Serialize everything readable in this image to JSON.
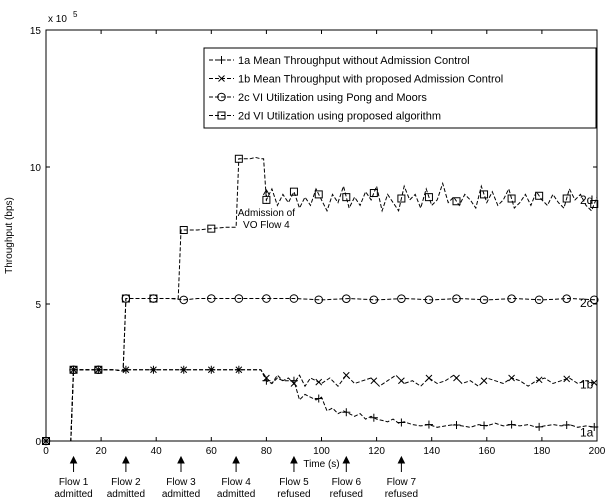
{
  "chart_data": {
    "type": "line",
    "title": "",
    "xlabel": "Time (s)",
    "ylabel": "Throughput (bps)",
    "y_multiplier_label": "x 10",
    "y_multiplier_exp": "5",
    "xlim": [
      0,
      200
    ],
    "ylim": [
      0,
      15
    ],
    "x_ticks": [
      "0",
      "20",
      "40",
      "60",
      "80",
      "100",
      "120",
      "140",
      "160",
      "180",
      "200"
    ],
    "y_ticks": [
      "0",
      "5",
      "10",
      "15"
    ],
    "grid": false,
    "legend_position": "top-right",
    "series": [
      {
        "name": "1a Mean Throughput without Admission Control",
        "tag": "1a",
        "marker": "+",
        "x": [
          0,
          5,
          9,
          10,
          15,
          20,
          25,
          28,
          29,
          35,
          40,
          45,
          50,
          55,
          60,
          65,
          70,
          72,
          75,
          78,
          80,
          82,
          84,
          86,
          88,
          90,
          92,
          94,
          96,
          98,
          100,
          102,
          104,
          106,
          108,
          110,
          112,
          114,
          116,
          118,
          120,
          122,
          124,
          126,
          128,
          130,
          133,
          136,
          139,
          142,
          145,
          148,
          151,
          154,
          157,
          160,
          163,
          166,
          169,
          172,
          175,
          178,
          181,
          184,
          187,
          190,
          193,
          196,
          200
        ],
        "values": [
          0,
          0,
          0,
          2.6,
          2.6,
          2.6,
          2.6,
          2.55,
          2.6,
          2.6,
          2.6,
          2.6,
          2.6,
          2.6,
          2.6,
          2.6,
          2.6,
          2.6,
          2.6,
          2.6,
          2.2,
          2.1,
          2.3,
          2.2,
          2.2,
          2.2,
          1.5,
          1.7,
          1.6,
          1.5,
          1.6,
          1.1,
          1.2,
          1.0,
          1.1,
          1.0,
          0.9,
          1.0,
          0.8,
          0.9,
          0.8,
          0.75,
          0.7,
          0.8,
          0.65,
          0.7,
          0.6,
          0.55,
          0.6,
          0.5,
          0.55,
          0.6,
          0.55,
          0.5,
          0.6,
          0.55,
          0.65,
          0.55,
          0.6,
          0.55,
          0.6,
          0.5,
          0.55,
          0.6,
          0.55,
          0.6,
          0.5,
          0.55,
          0.5
        ],
        "marker_x": [
          0,
          10,
          19,
          29,
          39,
          50,
          60,
          70,
          80,
          90,
          99,
          109,
          119,
          129,
          139,
          149,
          159,
          169,
          179,
          189,
          199
        ]
      },
      {
        "name": "1b Mean Throughput with proposed Admission Control",
        "tag": "1b",
        "marker": "x",
        "x": [
          0,
          5,
          9,
          10,
          15,
          20,
          25,
          28,
          29,
          35,
          40,
          45,
          50,
          55,
          60,
          65,
          70,
          72,
          75,
          78,
          80,
          82,
          84,
          86,
          88,
          90,
          92,
          94,
          96,
          98,
          100,
          103,
          106,
          109,
          112,
          115,
          118,
          121,
          124,
          127,
          130,
          133,
          136,
          139,
          142,
          145,
          148,
          151,
          154,
          157,
          160,
          163,
          166,
          169,
          172,
          175,
          178,
          181,
          184,
          187,
          190,
          193,
          196,
          200
        ],
        "values": [
          0,
          0,
          0,
          2.6,
          2.6,
          2.6,
          2.6,
          2.55,
          2.6,
          2.6,
          2.6,
          2.6,
          2.6,
          2.6,
          2.6,
          2.6,
          2.6,
          2.6,
          2.6,
          2.6,
          2.3,
          2.1,
          2.4,
          2.2,
          2.3,
          2.1,
          2.4,
          2.0,
          2.3,
          2.2,
          2.1,
          2.3,
          2.0,
          2.4,
          2.1,
          2.2,
          2.3,
          2.0,
          2.2,
          2.4,
          2.1,
          2.2,
          2.0,
          2.3,
          2.1,
          2.2,
          2.4,
          2.1,
          2.2,
          2.0,
          2.3,
          2.2,
          2.1,
          2.3,
          2.2,
          2.0,
          2.2,
          2.3,
          2.1,
          2.2,
          2.3,
          2.1,
          2.2,
          2.1
        ],
        "marker_x": [
          0,
          10,
          19,
          29,
          39,
          50,
          60,
          70,
          80,
          90,
          99,
          109,
          119,
          129,
          139,
          149,
          159,
          169,
          179,
          189,
          199
        ]
      },
      {
        "name": "2c VI Utilization using Pong and Moors",
        "tag": "2c",
        "marker": "o",
        "x": [
          0,
          5,
          9,
          10,
          15,
          20,
          25,
          28,
          29,
          35,
          40,
          45,
          50,
          55,
          60,
          70,
          80,
          90,
          100,
          110,
          120,
          130,
          140,
          150,
          160,
          170,
          180,
          190,
          200
        ],
        "values": [
          0,
          0,
          0,
          2.6,
          2.6,
          2.6,
          2.6,
          2.55,
          5.2,
          5.2,
          5.2,
          5.2,
          5.15,
          5.2,
          5.2,
          5.2,
          5.2,
          5.2,
          5.15,
          5.2,
          5.15,
          5.2,
          5.15,
          5.2,
          5.15,
          5.2,
          5.15,
          5.2,
          5.15
        ],
        "marker_x": [
          0,
          10,
          19,
          29,
          39,
          50,
          60,
          70,
          80,
          90,
          99,
          109,
          119,
          129,
          139,
          149,
          159,
          169,
          179,
          189,
          199
        ]
      },
      {
        "name": "2d VI Utilization using proposed algorithm",
        "tag": "2d",
        "marker": "s",
        "x": [
          0,
          5,
          9,
          10,
          15,
          20,
          25,
          28,
          29,
          35,
          40,
          45,
          48,
          49,
          55,
          60,
          65,
          69,
          70,
          72,
          74,
          76,
          78,
          79,
          80,
          82,
          84,
          86,
          88,
          90,
          92,
          94,
          96,
          98,
          100,
          102,
          104,
          106,
          108,
          110,
          112,
          114,
          116,
          118,
          120,
          122,
          124,
          126,
          128,
          130,
          132,
          134,
          136,
          138,
          140,
          142,
          144,
          146,
          148,
          150,
          152,
          154,
          156,
          158,
          160,
          162,
          164,
          166,
          168,
          170,
          172,
          174,
          176,
          178,
          180,
          182,
          184,
          186,
          188,
          190,
          192,
          194,
          196,
          198,
          200
        ],
        "values": [
          0,
          0,
          0,
          2.6,
          2.6,
          2.6,
          2.6,
          2.55,
          5.2,
          5.2,
          5.2,
          5.2,
          5.2,
          7.7,
          7.7,
          7.75,
          7.8,
          7.8,
          10.3,
          10.3,
          10.3,
          10.35,
          10.3,
          10.3,
          8.8,
          9.2,
          8.6,
          9.0,
          8.7,
          9.1,
          8.5,
          8.9,
          8.6,
          9.2,
          8.8,
          8.4,
          9.0,
          8.7,
          9.3,
          8.5,
          8.9,
          8.6,
          9.1,
          8.8,
          9.3,
          8.4,
          9.0,
          8.7,
          8.4,
          9.3,
          8.8,
          9.0,
          8.5,
          9.2,
          8.6,
          8.8,
          9.4,
          8.7,
          8.9,
          8.6,
          9.0,
          8.8,
          8.5,
          9.3,
          8.7,
          9.1,
          8.6,
          8.8,
          9.2,
          8.5,
          8.7,
          9.0,
          8.6,
          9.1,
          8.8,
          8.6,
          9.0,
          8.7,
          8.5,
          9.2,
          8.8,
          9.0,
          8.6,
          8.4,
          8.9
        ],
        "marker_x": [
          0,
          10,
          19,
          29,
          39,
          50,
          60,
          70,
          80,
          90,
          99,
          109,
          119,
          129,
          139,
          149,
          159,
          169,
          179,
          189,
          199
        ]
      }
    ],
    "annotations": [
      {
        "text": "Admission of",
        "text2": "VO Flow 4",
        "x": 80,
        "y": 9.2
      }
    ],
    "events": [
      {
        "x": 10,
        "line1": "Flow 1",
        "line2": "admitted"
      },
      {
        "x": 29,
        "line1": "Flow 2",
        "line2": "admitted"
      },
      {
        "x": 49,
        "line1": "Flow 3",
        "line2": "admitted"
      },
      {
        "x": 69,
        "line1": "Flow 4",
        "line2": "admitted"
      },
      {
        "x": 90,
        "line1": "Flow 5",
        "line2": "refused"
      },
      {
        "x": 109,
        "line1": "Flow 6",
        "line2": "refused"
      },
      {
        "x": 129,
        "line1": "Flow 7",
        "line2": "refused"
      }
    ]
  }
}
